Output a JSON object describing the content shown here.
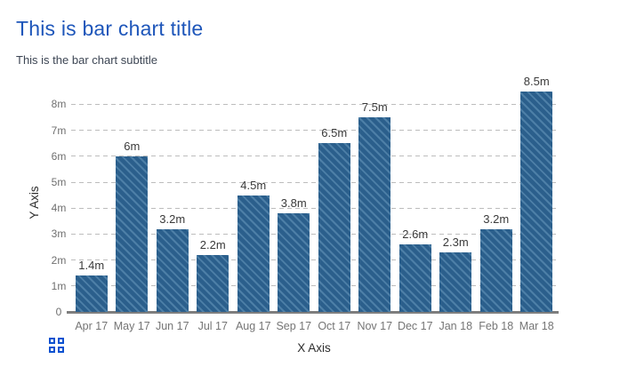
{
  "header": {
    "title": "This is bar chart title",
    "subtitle": "This is the bar chart subtitle"
  },
  "chart_data": {
    "type": "bar",
    "title": "This is bar chart title",
    "subtitle": "This is the bar chart subtitle",
    "xlabel": "X Axis",
    "ylabel": "Y Axis",
    "categories": [
      "Apr 17",
      "May 17",
      "Jun 17",
      "Jul 17",
      "Aug 17",
      "Sep 17",
      "Oct 17",
      "Nov 17",
      "Dec 17",
      "Jan 18",
      "Feb 18",
      "Mar 18"
    ],
    "values": [
      1.4,
      6,
      3.2,
      2.2,
      4.5,
      3.8,
      6.5,
      7.5,
      2.6,
      2.3,
      3.2,
      8.5
    ],
    "value_labels": [
      "1.4m",
      "6m",
      "3.2m",
      "2.2m",
      "4.5m",
      "3.8m",
      "6.5m",
      "7.5m",
      "2.6m",
      "2.3m",
      "3.2m",
      "8.5m"
    ],
    "unit": "m",
    "ylim": [
      0,
      8.5
    ],
    "yticks": [
      {
        "value": 0,
        "label": "0"
      },
      {
        "value": 1,
        "label": "1m"
      },
      {
        "value": 2,
        "label": "2m"
      },
      {
        "value": 3,
        "label": "3m"
      },
      {
        "value": 4,
        "label": "4m"
      },
      {
        "value": 5,
        "label": "5m"
      },
      {
        "value": 6,
        "label": "6m"
      },
      {
        "value": 7,
        "label": "7m"
      },
      {
        "value": 8,
        "label": "8m"
      }
    ],
    "grid": "horizontal-dashed",
    "legend": "none",
    "bar_style": "diagonal-hatch"
  },
  "icons": {
    "grid_icon": "grid-of-four-squares"
  },
  "colors": {
    "background": "#ffffff",
    "title": "#1e56ba",
    "subtitle": "#3d4654",
    "bar_base": "#2b5f8c",
    "bar_stripe": "#4d7fa7",
    "value_label": "#3a3a3a",
    "tick_label": "#6f6f6f",
    "axis_title": "#2d2d2d",
    "gridline": "#bdbdbd",
    "axis_line": "#7e7e7e",
    "icon_blue": "#0b51d0"
  }
}
